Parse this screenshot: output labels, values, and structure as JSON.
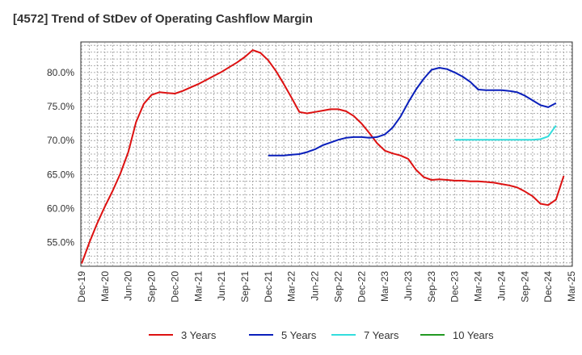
{
  "chart_data": {
    "type": "line",
    "title": "[4572]  Trend of StDev of Operating Cashflow Margin",
    "xlabel": "",
    "ylabel": "",
    "x_ticks": [
      "Dec-19",
      "Mar-20",
      "Jun-20",
      "Sep-20",
      "Dec-20",
      "Mar-21",
      "Jun-21",
      "Sep-21",
      "Dec-21",
      "Mar-22",
      "Jun-22",
      "Sep-22",
      "Dec-22",
      "Mar-23",
      "Jun-23",
      "Sep-23",
      "Dec-23",
      "Mar-24",
      "Jun-24",
      "Sep-24",
      "Dec-24",
      "Mar-25"
    ],
    "y_ticks": [
      "55.0%",
      "60.0%",
      "65.0%",
      "70.0%",
      "75.0%",
      "80.0%"
    ],
    "y_tick_values": [
      55,
      60,
      65,
      70,
      75,
      80
    ],
    "ylim": [
      51.5,
      84.5
    ],
    "grid": true,
    "legend_position": "bottom",
    "series": [
      {
        "name": "3 Years",
        "color": "#dd1111",
        "points": [
          [
            "Dec-19",
            51.9
          ],
          [
            "Jan-20",
            55.0
          ],
          [
            "Feb-20",
            57.8
          ],
          [
            "Mar-20",
            60.3
          ],
          [
            "Apr-20",
            62.6
          ],
          [
            "May-20",
            65.2
          ],
          [
            "Jun-20",
            68.3
          ],
          [
            "Jul-20",
            72.7
          ],
          [
            "Aug-20",
            75.4
          ],
          [
            "Sep-20",
            76.7
          ],
          [
            "Oct-20",
            77.1
          ],
          [
            "Nov-20",
            77.0
          ],
          [
            "Dec-20",
            76.9
          ],
          [
            "Jan-21",
            77.3
          ],
          [
            "Feb-21",
            77.8
          ],
          [
            "Mar-21",
            78.3
          ],
          [
            "Apr-21",
            78.9
          ],
          [
            "May-21",
            79.5
          ],
          [
            "Jun-21",
            80.1
          ],
          [
            "Jul-21",
            80.8
          ],
          [
            "Aug-21",
            81.5
          ],
          [
            "Sep-21",
            82.3
          ],
          [
            "Oct-21",
            83.3
          ],
          [
            "Nov-21",
            82.9
          ],
          [
            "Dec-21",
            81.8
          ],
          [
            "Jan-22",
            80.2
          ],
          [
            "Feb-22",
            78.3
          ],
          [
            "Mar-22",
            76.3
          ],
          [
            "Apr-22",
            74.2
          ],
          [
            "May-22",
            74.0
          ],
          [
            "Jun-22",
            74.2
          ],
          [
            "Jul-22",
            74.4
          ],
          [
            "Aug-22",
            74.6
          ],
          [
            "Sep-22",
            74.6
          ],
          [
            "Oct-22",
            74.3
          ],
          [
            "Nov-22",
            73.6
          ],
          [
            "Dec-22",
            72.5
          ],
          [
            "Jan-23",
            71.1
          ],
          [
            "Feb-23",
            69.6
          ],
          [
            "Mar-23",
            68.5
          ],
          [
            "Apr-23",
            68.1
          ],
          [
            "May-23",
            67.8
          ],
          [
            "Jun-23",
            67.3
          ],
          [
            "Jul-23",
            65.7
          ],
          [
            "Aug-23",
            64.6
          ],
          [
            "Sep-23",
            64.2
          ],
          [
            "Oct-23",
            64.3
          ],
          [
            "Nov-23",
            64.2
          ],
          [
            "Dec-23",
            64.1
          ],
          [
            "Jan-24",
            64.1
          ],
          [
            "Feb-24",
            64.0
          ],
          [
            "Mar-24",
            64.0
          ],
          [
            "Apr-24",
            63.9
          ],
          [
            "May-24",
            63.8
          ],
          [
            "Jun-24",
            63.6
          ],
          [
            "Jul-24",
            63.4
          ],
          [
            "Aug-24",
            63.1
          ],
          [
            "Sep-24",
            62.5
          ],
          [
            "Oct-24",
            61.8
          ],
          [
            "Nov-24",
            60.7
          ],
          [
            "Dec-24",
            60.5
          ],
          [
            "Jan-25",
            61.3
          ],
          [
            "Feb-25",
            64.8
          ]
        ]
      },
      {
        "name": "5 Years",
        "color": "#0a1fbb",
        "points": [
          [
            "Dec-21",
            67.8
          ],
          [
            "Jan-22",
            67.8
          ],
          [
            "Feb-22",
            67.8
          ],
          [
            "Mar-22",
            67.9
          ],
          [
            "Apr-22",
            68.0
          ],
          [
            "May-22",
            68.3
          ],
          [
            "Jun-22",
            68.7
          ],
          [
            "Jul-22",
            69.3
          ],
          [
            "Aug-22",
            69.7
          ],
          [
            "Sep-22",
            70.1
          ],
          [
            "Oct-22",
            70.4
          ],
          [
            "Nov-22",
            70.5
          ],
          [
            "Dec-22",
            70.5
          ],
          [
            "Jan-23",
            70.4
          ],
          [
            "Feb-23",
            70.5
          ],
          [
            "Mar-23",
            70.9
          ],
          [
            "Apr-23",
            71.9
          ],
          [
            "May-23",
            73.5
          ],
          [
            "Jun-23",
            75.6
          ],
          [
            "Jul-23",
            77.5
          ],
          [
            "Aug-23",
            79.1
          ],
          [
            "Sep-23",
            80.4
          ],
          [
            "Oct-23",
            80.7
          ],
          [
            "Nov-23",
            80.5
          ],
          [
            "Dec-23",
            80.0
          ],
          [
            "Jan-24",
            79.4
          ],
          [
            "Feb-24",
            78.6
          ],
          [
            "Mar-24",
            77.5
          ],
          [
            "Apr-24",
            77.4
          ],
          [
            "May-24",
            77.4
          ],
          [
            "Jun-24",
            77.4
          ],
          [
            "Jul-24",
            77.3
          ],
          [
            "Aug-24",
            77.1
          ],
          [
            "Sep-24",
            76.6
          ],
          [
            "Oct-24",
            75.9
          ],
          [
            "Nov-24",
            75.2
          ],
          [
            "Dec-24",
            74.9
          ],
          [
            "Jan-25",
            75.5
          ]
        ]
      },
      {
        "name": "7 Years",
        "color": "#33dddd",
        "points": [
          [
            "Dec-23",
            70.1
          ],
          [
            "Jan-24",
            70.1
          ],
          [
            "Feb-24",
            70.1
          ],
          [
            "Mar-24",
            70.1
          ],
          [
            "Apr-24",
            70.1
          ],
          [
            "May-24",
            70.1
          ],
          [
            "Jun-24",
            70.1
          ],
          [
            "Jul-24",
            70.1
          ],
          [
            "Aug-24",
            70.1
          ],
          [
            "Sep-24",
            70.1
          ],
          [
            "Oct-24",
            70.1
          ],
          [
            "Nov-24",
            70.2
          ],
          [
            "Dec-24",
            70.6
          ],
          [
            "Jan-25",
            72.2
          ]
        ]
      },
      {
        "name": "10 Years",
        "color": "#229922",
        "points": []
      }
    ]
  }
}
